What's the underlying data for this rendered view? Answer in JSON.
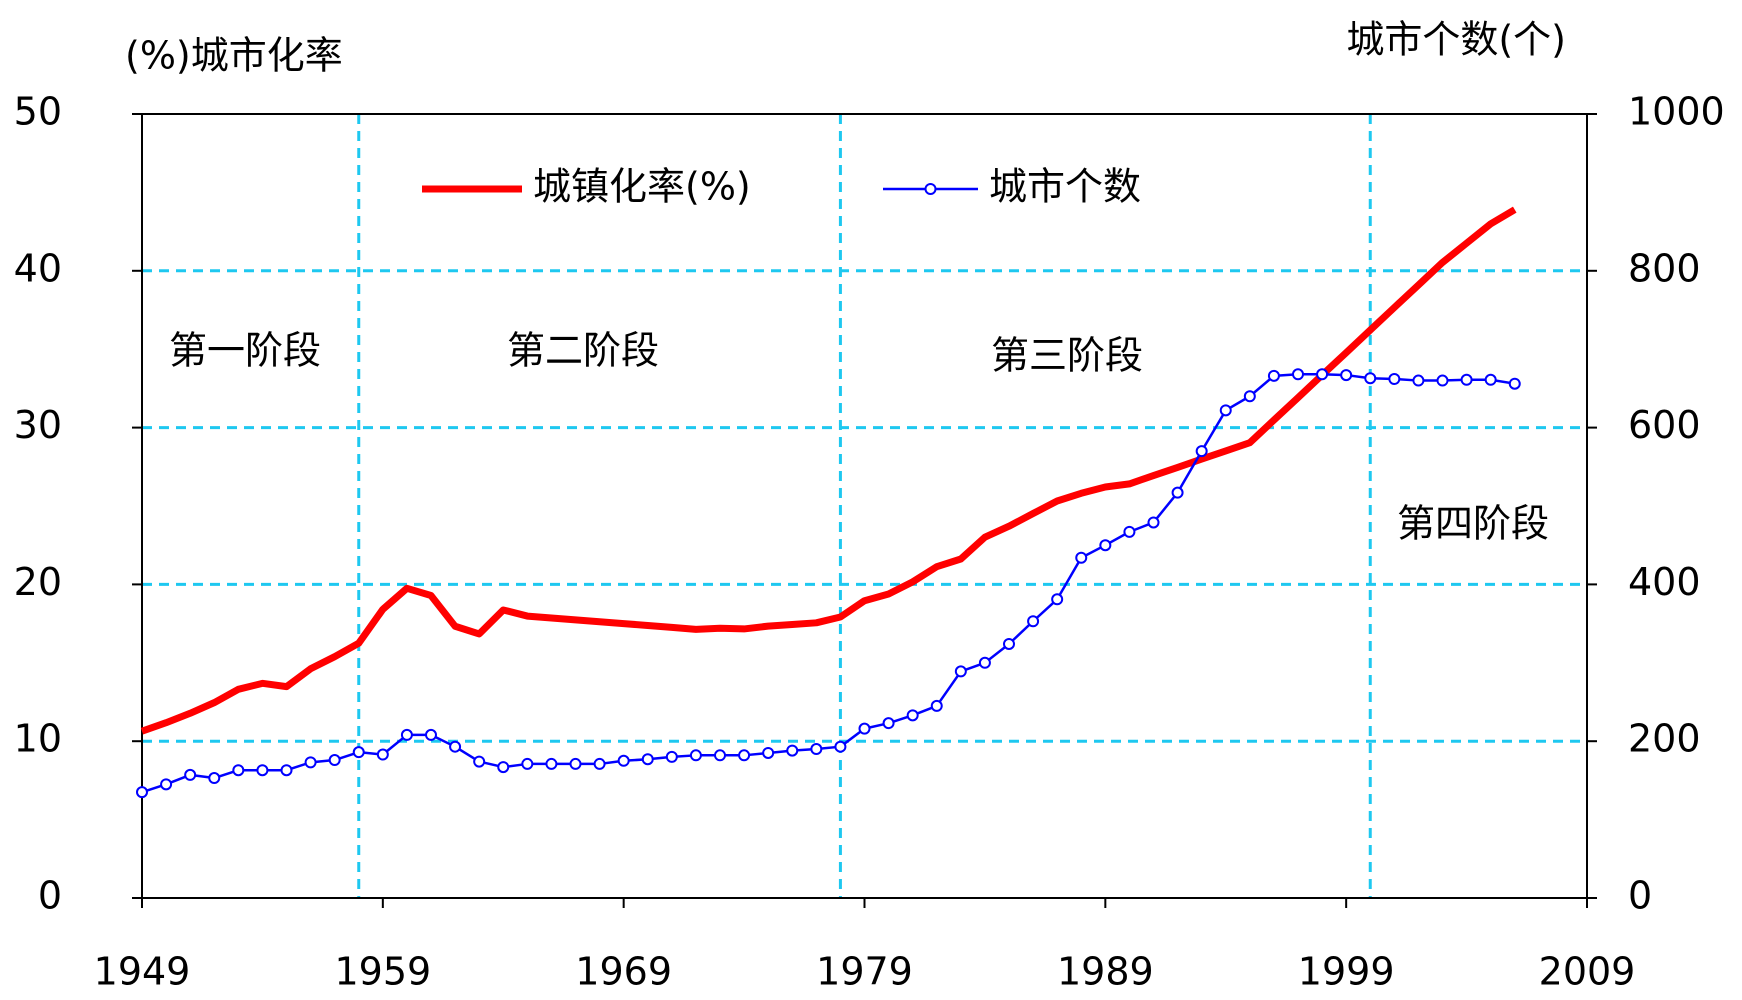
{
  "chart_data": {
    "type": "line",
    "y_title": "(%)城市化率",
    "y2_title": "城市个数(个)",
    "x": [
      1949,
      1950,
      1951,
      1952,
      1953,
      1954,
      1955,
      1956,
      1957,
      1958,
      1959,
      1960,
      1961,
      1962,
      1963,
      1964,
      1965,
      1966,
      1967,
      1968,
      1969,
      1970,
      1971,
      1972,
      1973,
      1974,
      1975,
      1976,
      1977,
      1978,
      1979,
      1980,
      1981,
      1982,
      1983,
      1984,
      1985,
      1986,
      1987,
      1988,
      1989,
      1990,
      1991,
      1992,
      1993,
      1994,
      1995,
      1996,
      1997,
      1998,
      1999,
      2000,
      2001,
      2002,
      2003,
      2004,
      2005,
      2006
    ],
    "series": [
      {
        "name": "城镇化率(%)",
        "color": "#ff0000",
        "values": [
          10.64,
          11.18,
          11.78,
          12.46,
          13.31,
          13.69,
          13.48,
          14.62,
          15.39,
          16.25,
          18.41,
          19.75,
          19.29,
          17.33,
          16.84,
          18.37,
          17.98,
          17.86,
          17.74,
          17.62,
          17.5,
          17.38,
          17.26,
          17.13,
          17.2,
          17.16,
          17.34,
          17.44,
          17.55,
          17.92,
          18.96,
          19.39,
          20.16,
          21.13,
          21.62,
          23.01,
          23.71,
          24.52,
          25.32,
          25.81,
          26.21,
          26.41,
          26.94,
          27.46,
          27.99,
          28.51,
          29.04,
          30.48,
          31.91,
          33.35,
          34.78,
          36.22,
          37.66,
          39.09,
          40.53,
          41.76,
          42.99,
          43.9
        ]
      },
      {
        "name": "城市个数",
        "color": "#0000ff",
        "axis": "y2",
        "values": [
          135,
          145,
          157,
          153,
          163,
          163,
          163,
          173,
          176,
          186,
          183,
          208,
          208,
          193,
          174,
          167,
          171,
          171,
          171,
          171,
          175,
          177,
          180,
          182,
          182,
          182,
          185,
          188,
          190,
          193,
          216,
          223,
          233,
          245,
          289,
          300,
          324,
          353,
          381,
          434,
          450,
          467,
          479,
          517,
          570,
          622,
          640,
          666,
          668,
          668,
          667,
          663,
          662,
          660,
          660,
          661,
          661,
          656
        ]
      }
    ],
    "xlim": [
      1949,
      2009
    ],
    "xticks": [
      1949,
      1959,
      1969,
      1979,
      1989,
      1999,
      2009
    ],
    "ylim": [
      0,
      50
    ],
    "yticks": [
      0,
      10,
      20,
      30,
      40,
      50
    ],
    "y2lim": [
      0,
      1000
    ],
    "y2ticks": [
      0,
      200,
      400,
      600,
      800,
      1000
    ],
    "grid": true,
    "legend": "top",
    "dividers": [
      1958,
      1978,
      2000
    ],
    "annotations": [
      "第一阶段",
      "第二阶段",
      "第三阶段",
      "第四阶段"
    ]
  }
}
